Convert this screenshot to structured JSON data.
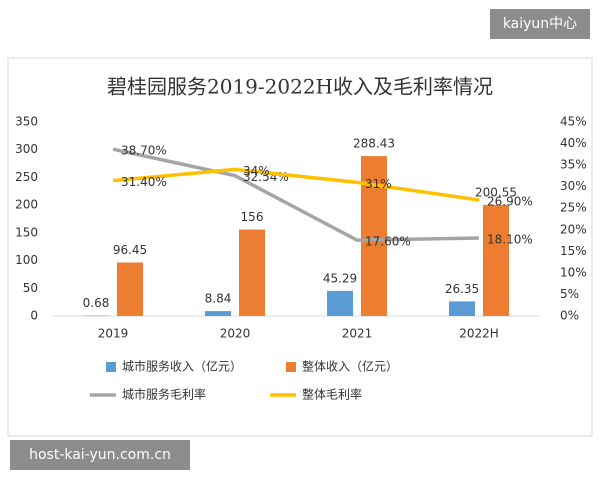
{
  "watermarks": [
    "kaiyun中心",
    "host-kai-yun.com.cn"
  ],
  "chart_data": {
    "type": "bar",
    "title": "碧桂园服务2019-2022H收入及毛利率情况",
    "categories": [
      "2019",
      "2020",
      "2021",
      "2022H"
    ],
    "ylim": [
      0,
      350
    ],
    "yticks": [
      0,
      50,
      100,
      150,
      200,
      250,
      300,
      350
    ],
    "y2lim": [
      0,
      45
    ],
    "y2ticks": [
      {
        "value": 0,
        "label": "0%"
      },
      {
        "value": 5,
        "label": "5%"
      },
      {
        "value": 10,
        "label": "10%"
      },
      {
        "value": 15,
        "label": "15%"
      },
      {
        "value": 20,
        "label": "20%"
      },
      {
        "value": 25,
        "label": "25%"
      },
      {
        "value": 30,
        "label": "30%"
      },
      {
        "value": 35,
        "label": "35%"
      },
      {
        "value": 40,
        "label": "40%"
      },
      {
        "value": 45,
        "label": "45%"
      }
    ],
    "series": [
      {
        "name": "城市服务收入（亿元）",
        "type": "bar",
        "color": "#5b9bd5",
        "values": [
          0.68,
          8.84,
          45.29,
          26.35
        ]
      },
      {
        "name": "整体收入（亿元）",
        "type": "bar",
        "color": "#ed7d31",
        "values": [
          96.45,
          156,
          288.43,
          200.55
        ]
      },
      {
        "name": "城市服务毛利率",
        "type": "line",
        "axis": "y2",
        "color": "#a5a5a5",
        "values": [
          38.7,
          32.54,
          17.6,
          18.1
        ],
        "value_labels": [
          "38.70%",
          "32.54%",
          "17.60%",
          "18.10%"
        ]
      },
      {
        "name": "整体毛利率",
        "type": "line",
        "axis": "y2",
        "color": "#ffc000",
        "values": [
          31.4,
          34,
          31,
          26.9
        ],
        "value_labels": [
          "31.40%",
          "34%",
          "31%",
          "26.90%"
        ]
      }
    ]
  }
}
